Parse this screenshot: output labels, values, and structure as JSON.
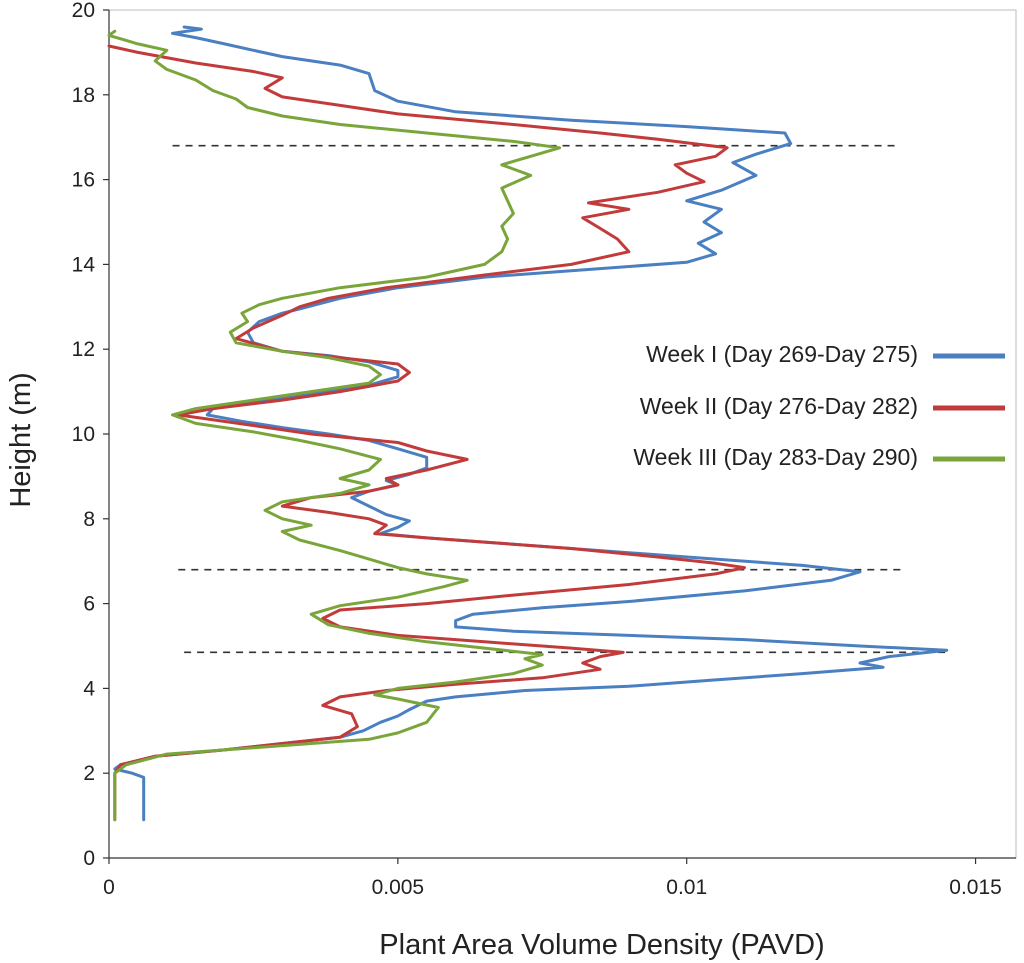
{
  "chart_data": {
    "type": "line",
    "title": "",
    "xlabel": "Plant Area Volume Density (PAVD)",
    "ylabel": "Height (m)",
    "xlim": [
      0,
      0.0157
    ],
    "ylim": [
      0,
      20
    ],
    "x_ticks": [
      0,
      0.005,
      0.01,
      0.015
    ],
    "x_tick_labels": [
      "0",
      "0.005",
      "0.01",
      "0.015"
    ],
    "y_ticks": [
      0,
      2,
      4,
      6,
      8,
      10,
      12,
      14,
      16,
      18,
      20
    ],
    "y_tick_labels": [
      "0",
      "2",
      "4",
      "6",
      "8",
      "10",
      "12",
      "14",
      "16",
      "18",
      "20"
    ],
    "grid": false,
    "legend_position": "right",
    "reference_lines": [
      {
        "style": "dashed",
        "y": 16.8,
        "x_start": 0.0011,
        "x_end": 0.0137
      },
      {
        "style": "dashed",
        "y": 6.8,
        "x_start": 0.0012,
        "x_end": 0.0137
      },
      {
        "style": "dashed",
        "y": 4.85,
        "x_start": 0.0013,
        "x_end": 0.0145
      }
    ],
    "series": [
      {
        "name": "Week I (Day 269-Day 275)",
        "color": "#4a7fc1",
        "points": [
          [
            0.0006,
            0.9
          ],
          [
            0.0006,
            1.0
          ],
          [
            0.0006,
            1.3
          ],
          [
            0.0006,
            1.6
          ],
          [
            0.0006,
            1.9
          ],
          [
            0.0004,
            2.0
          ],
          [
            0.0001,
            2.1
          ],
          [
            0.0002,
            2.2
          ],
          [
            0.0008,
            2.4
          ],
          [
            0.002,
            2.55
          ],
          [
            0.003,
            2.7
          ],
          [
            0.004,
            2.85
          ],
          [
            0.0044,
            3.0
          ],
          [
            0.0047,
            3.2
          ],
          [
            0.005,
            3.35
          ],
          [
            0.0052,
            3.5
          ],
          [
            0.0055,
            3.7
          ],
          [
            0.006,
            3.8
          ],
          [
            0.0072,
            3.95
          ],
          [
            0.009,
            4.05
          ],
          [
            0.0105,
            4.2
          ],
          [
            0.012,
            4.35
          ],
          [
            0.0134,
            4.5
          ],
          [
            0.013,
            4.6
          ],
          [
            0.0135,
            4.75
          ],
          [
            0.0145,
            4.9
          ],
          [
            0.013,
            5.0
          ],
          [
            0.011,
            5.15
          ],
          [
            0.009,
            5.25
          ],
          [
            0.007,
            5.35
          ],
          [
            0.006,
            5.45
          ],
          [
            0.006,
            5.6
          ],
          [
            0.0063,
            5.75
          ],
          [
            0.0075,
            5.9
          ],
          [
            0.009,
            6.05
          ],
          [
            0.011,
            6.3
          ],
          [
            0.0125,
            6.55
          ],
          [
            0.013,
            6.75
          ],
          [
            0.012,
            6.9
          ],
          [
            0.0105,
            7.05
          ],
          [
            0.009,
            7.2
          ],
          [
            0.0075,
            7.35
          ],
          [
            0.0065,
            7.45
          ],
          [
            0.0055,
            7.55
          ],
          [
            0.0047,
            7.65
          ],
          [
            0.005,
            7.8
          ],
          [
            0.0052,
            7.95
          ],
          [
            0.0048,
            8.1
          ],
          [
            0.0045,
            8.3
          ],
          [
            0.0042,
            8.5
          ],
          [
            0.0045,
            8.65
          ],
          [
            0.005,
            8.8
          ],
          [
            0.0048,
            8.9
          ],
          [
            0.0052,
            9.05
          ],
          [
            0.0055,
            9.2
          ],
          [
            0.0055,
            9.45
          ],
          [
            0.005,
            9.65
          ],
          [
            0.0045,
            9.85
          ],
          [
            0.0038,
            10.0
          ],
          [
            0.003,
            10.15
          ],
          [
            0.0023,
            10.3
          ],
          [
            0.0017,
            10.45
          ],
          [
            0.0018,
            10.6
          ],
          [
            0.0025,
            10.75
          ],
          [
            0.0035,
            10.95
          ],
          [
            0.0045,
            11.15
          ],
          [
            0.005,
            11.35
          ],
          [
            0.005,
            11.5
          ],
          [
            0.0045,
            11.7
          ],
          [
            0.0038,
            11.85
          ],
          [
            0.003,
            11.95
          ],
          [
            0.0025,
            12.15
          ],
          [
            0.0024,
            12.4
          ],
          [
            0.0026,
            12.65
          ],
          [
            0.003,
            12.85
          ],
          [
            0.0033,
            12.95
          ],
          [
            0.004,
            13.2
          ],
          [
            0.005,
            13.45
          ],
          [
            0.0065,
            13.7
          ],
          [
            0.0085,
            13.9
          ],
          [
            0.01,
            14.05
          ],
          [
            0.0105,
            14.25
          ],
          [
            0.0102,
            14.5
          ],
          [
            0.0106,
            14.75
          ],
          [
            0.0103,
            15.0
          ],
          [
            0.0106,
            15.3
          ],
          [
            0.01,
            15.5
          ],
          [
            0.0106,
            15.75
          ],
          [
            0.0112,
            16.1
          ],
          [
            0.0108,
            16.4
          ],
          [
            0.0112,
            16.6
          ],
          [
            0.0118,
            16.85
          ],
          [
            0.0117,
            17.1
          ],
          [
            0.01,
            17.25
          ],
          [
            0.008,
            17.4
          ],
          [
            0.006,
            17.6
          ],
          [
            0.005,
            17.85
          ],
          [
            0.0046,
            18.1
          ],
          [
            0.0045,
            18.5
          ],
          [
            0.004,
            18.7
          ],
          [
            0.003,
            18.9
          ],
          [
            0.0025,
            19.05
          ],
          [
            0.002,
            19.2
          ],
          [
            0.0015,
            19.35
          ],
          [
            0.0011,
            19.45
          ],
          [
            0.0016,
            19.55
          ],
          [
            0.0013,
            19.6
          ]
        ]
      },
      {
        "name": "Week II (Day 276-Day 282)",
        "color": "#c23b3b",
        "points": [
          [
            0.0001,
            0.9
          ],
          [
            0.0001,
            1.3
          ],
          [
            0.0001,
            1.7
          ],
          [
            0.0001,
            2.0
          ],
          [
            0.0002,
            2.2
          ],
          [
            0.0008,
            2.4
          ],
          [
            0.002,
            2.55
          ],
          [
            0.003,
            2.7
          ],
          [
            0.004,
            2.85
          ],
          [
            0.0043,
            3.1
          ],
          [
            0.0042,
            3.4
          ],
          [
            0.0037,
            3.6
          ],
          [
            0.004,
            3.8
          ],
          [
            0.0048,
            3.95
          ],
          [
            0.006,
            4.1
          ],
          [
            0.0075,
            4.25
          ],
          [
            0.0085,
            4.45
          ],
          [
            0.0082,
            4.6
          ],
          [
            0.0085,
            4.75
          ],
          [
            0.0089,
            4.85
          ],
          [
            0.008,
            4.95
          ],
          [
            0.0065,
            5.1
          ],
          [
            0.005,
            5.25
          ],
          [
            0.004,
            5.45
          ],
          [
            0.0037,
            5.65
          ],
          [
            0.004,
            5.85
          ],
          [
            0.0055,
            6.0
          ],
          [
            0.007,
            6.2
          ],
          [
            0.009,
            6.45
          ],
          [
            0.0105,
            6.7
          ],
          [
            0.011,
            6.85
          ],
          [
            0.0105,
            6.95
          ],
          [
            0.0095,
            7.1
          ],
          [
            0.008,
            7.3
          ],
          [
            0.0065,
            7.45
          ],
          [
            0.0055,
            7.55
          ],
          [
            0.0046,
            7.65
          ],
          [
            0.0048,
            7.85
          ],
          [
            0.0045,
            8.0
          ],
          [
            0.0038,
            8.15
          ],
          [
            0.003,
            8.3
          ],
          [
            0.0035,
            8.5
          ],
          [
            0.0045,
            8.65
          ],
          [
            0.005,
            8.8
          ],
          [
            0.0048,
            8.95
          ],
          [
            0.0055,
            9.15
          ],
          [
            0.0062,
            9.4
          ],
          [
            0.0055,
            9.6
          ],
          [
            0.005,
            9.8
          ],
          [
            0.0035,
            10.0
          ],
          [
            0.0025,
            10.2
          ],
          [
            0.0012,
            10.45
          ],
          [
            0.0018,
            10.6
          ],
          [
            0.003,
            10.8
          ],
          [
            0.004,
            11.0
          ],
          [
            0.005,
            11.25
          ],
          [
            0.0052,
            11.45
          ],
          [
            0.005,
            11.65
          ],
          [
            0.004,
            11.8
          ],
          [
            0.003,
            11.95
          ],
          [
            0.0022,
            12.25
          ],
          [
            0.0025,
            12.5
          ],
          [
            0.003,
            12.8
          ],
          [
            0.0033,
            13.0
          ],
          [
            0.0038,
            13.2
          ],
          [
            0.0048,
            13.45
          ],
          [
            0.0065,
            13.75
          ],
          [
            0.008,
            14.0
          ],
          [
            0.009,
            14.3
          ],
          [
            0.0088,
            14.6
          ],
          [
            0.0085,
            14.85
          ],
          [
            0.0082,
            15.1
          ],
          [
            0.009,
            15.3
          ],
          [
            0.0083,
            15.45
          ],
          [
            0.0095,
            15.7
          ],
          [
            0.0103,
            15.95
          ],
          [
            0.01,
            16.15
          ],
          [
            0.0098,
            16.35
          ],
          [
            0.0105,
            16.55
          ],
          [
            0.0107,
            16.75
          ],
          [
            0.0095,
            16.95
          ],
          [
            0.0085,
            17.1
          ],
          [
            0.007,
            17.3
          ],
          [
            0.005,
            17.55
          ],
          [
            0.004,
            17.75
          ],
          [
            0.003,
            17.95
          ],
          [
            0.0027,
            18.15
          ],
          [
            0.003,
            18.4
          ],
          [
            0.0025,
            18.55
          ],
          [
            0.0015,
            18.75
          ],
          [
            0.0005,
            19.0
          ],
          [
            0.0,
            19.15
          ]
        ]
      },
      {
        "name": "Week III (Day 283-Day 290)",
        "color": "#7aa53a",
        "points": [
          [
            0.0001,
            0.9
          ],
          [
            0.0001,
            1.2
          ],
          [
            0.0001,
            1.5
          ],
          [
            0.0001,
            1.8
          ],
          [
            0.0001,
            2.0
          ],
          [
            0.0003,
            2.2
          ],
          [
            0.001,
            2.45
          ],
          [
            0.002,
            2.55
          ],
          [
            0.0035,
            2.7
          ],
          [
            0.0045,
            2.8
          ],
          [
            0.005,
            2.95
          ],
          [
            0.0055,
            3.2
          ],
          [
            0.0057,
            3.55
          ],
          [
            0.005,
            3.75
          ],
          [
            0.0046,
            3.85
          ],
          [
            0.005,
            4.0
          ],
          [
            0.006,
            4.15
          ],
          [
            0.007,
            4.35
          ],
          [
            0.0075,
            4.55
          ],
          [
            0.0072,
            4.7
          ],
          [
            0.0075,
            4.8
          ],
          [
            0.0065,
            4.95
          ],
          [
            0.0055,
            5.1
          ],
          [
            0.0045,
            5.3
          ],
          [
            0.0038,
            5.5
          ],
          [
            0.0035,
            5.75
          ],
          [
            0.004,
            5.95
          ],
          [
            0.005,
            6.15
          ],
          [
            0.0058,
            6.4
          ],
          [
            0.0062,
            6.55
          ],
          [
            0.0055,
            6.7
          ],
          [
            0.005,
            6.85
          ],
          [
            0.0045,
            7.05
          ],
          [
            0.004,
            7.25
          ],
          [
            0.0033,
            7.5
          ],
          [
            0.003,
            7.7
          ],
          [
            0.0035,
            7.85
          ],
          [
            0.003,
            8.0
          ],
          [
            0.0027,
            8.2
          ],
          [
            0.003,
            8.4
          ],
          [
            0.004,
            8.6
          ],
          [
            0.0045,
            8.8
          ],
          [
            0.004,
            8.95
          ],
          [
            0.0045,
            9.15
          ],
          [
            0.0047,
            9.4
          ],
          [
            0.004,
            9.65
          ],
          [
            0.0033,
            9.85
          ],
          [
            0.0025,
            10.05
          ],
          [
            0.0015,
            10.25
          ],
          [
            0.0011,
            10.45
          ],
          [
            0.0015,
            10.6
          ],
          [
            0.0025,
            10.8
          ],
          [
            0.0035,
            11.0
          ],
          [
            0.0045,
            11.2
          ],
          [
            0.0047,
            11.4
          ],
          [
            0.0045,
            11.6
          ],
          [
            0.0038,
            11.8
          ],
          [
            0.003,
            11.95
          ],
          [
            0.0022,
            12.15
          ],
          [
            0.0021,
            12.4
          ],
          [
            0.0024,
            12.65
          ],
          [
            0.0023,
            12.85
          ],
          [
            0.0026,
            13.05
          ],
          [
            0.003,
            13.2
          ],
          [
            0.004,
            13.45
          ],
          [
            0.0055,
            13.7
          ],
          [
            0.0065,
            14.0
          ],
          [
            0.0068,
            14.3
          ],
          [
            0.0069,
            14.6
          ],
          [
            0.0068,
            14.9
          ],
          [
            0.007,
            15.2
          ],
          [
            0.0069,
            15.5
          ],
          [
            0.0068,
            15.8
          ],
          [
            0.0073,
            16.1
          ],
          [
            0.0068,
            16.35
          ],
          [
            0.0073,
            16.55
          ],
          [
            0.0078,
            16.75
          ],
          [
            0.007,
            16.9
          ],
          [
            0.0055,
            17.1
          ],
          [
            0.004,
            17.3
          ],
          [
            0.003,
            17.5
          ],
          [
            0.0024,
            17.7
          ],
          [
            0.0022,
            17.9
          ],
          [
            0.0018,
            18.1
          ],
          [
            0.0015,
            18.35
          ],
          [
            0.001,
            18.6
          ],
          [
            0.0008,
            18.8
          ],
          [
            0.001,
            19.05
          ],
          [
            0.0005,
            19.2
          ],
          [
            0.0,
            19.4
          ],
          [
            0.0001,
            19.5
          ]
        ]
      }
    ]
  }
}
